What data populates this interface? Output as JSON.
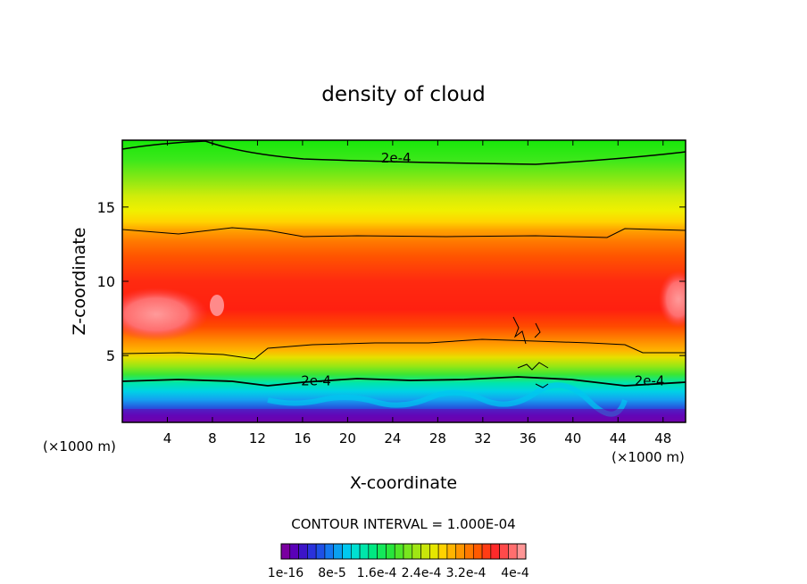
{
  "chart_data": {
    "type": "contour",
    "title": "density of cloud",
    "xlabel": "X-coordinate",
    "ylabel": "Z-coordinate",
    "x_unit": "(×1000 m)",
    "xlim": [
      0,
      50
    ],
    "ylim": [
      0.5,
      19.5
    ],
    "x_ticks": [
      4,
      8,
      12,
      16,
      20,
      24,
      28,
      32,
      36,
      40,
      44,
      48
    ],
    "y_ticks": [
      5,
      10,
      15
    ],
    "contour_interval_text": "CONTOUR INTERVAL = 1.000E-04",
    "contour_labels": [
      {
        "text": "2e-4",
        "x": 24.3,
        "z": 18.3
      },
      {
        "text": "2e-4",
        "x": 17.2,
        "z": 3.3
      },
      {
        "text": "2e-4",
        "x": 46.8,
        "z": 3.3
      }
    ],
    "colorbar": {
      "colors": [
        "#7a00a0",
        "#5a00b8",
        "#3c14c8",
        "#2a32dc",
        "#1e50e6",
        "#1478f0",
        "#0aa0f0",
        "#00c8f0",
        "#00e0d2",
        "#00e6aa",
        "#00e882",
        "#14e85a",
        "#28e63c",
        "#50e628",
        "#78e61e",
        "#a0e614",
        "#c8e60a",
        "#e6e600",
        "#ffd200",
        "#ffb400",
        "#ff9600",
        "#ff7800",
        "#ff5a00",
        "#ff3c14",
        "#ff2a2a",
        "#ff4a4a",
        "#ff6e6e",
        "#ff9696"
      ],
      "tick_labels": [
        "1e-16",
        "8e-5",
        "1.6e-4",
        "2.4e-4",
        "3.2e-4",
        "4e-4"
      ]
    }
  }
}
